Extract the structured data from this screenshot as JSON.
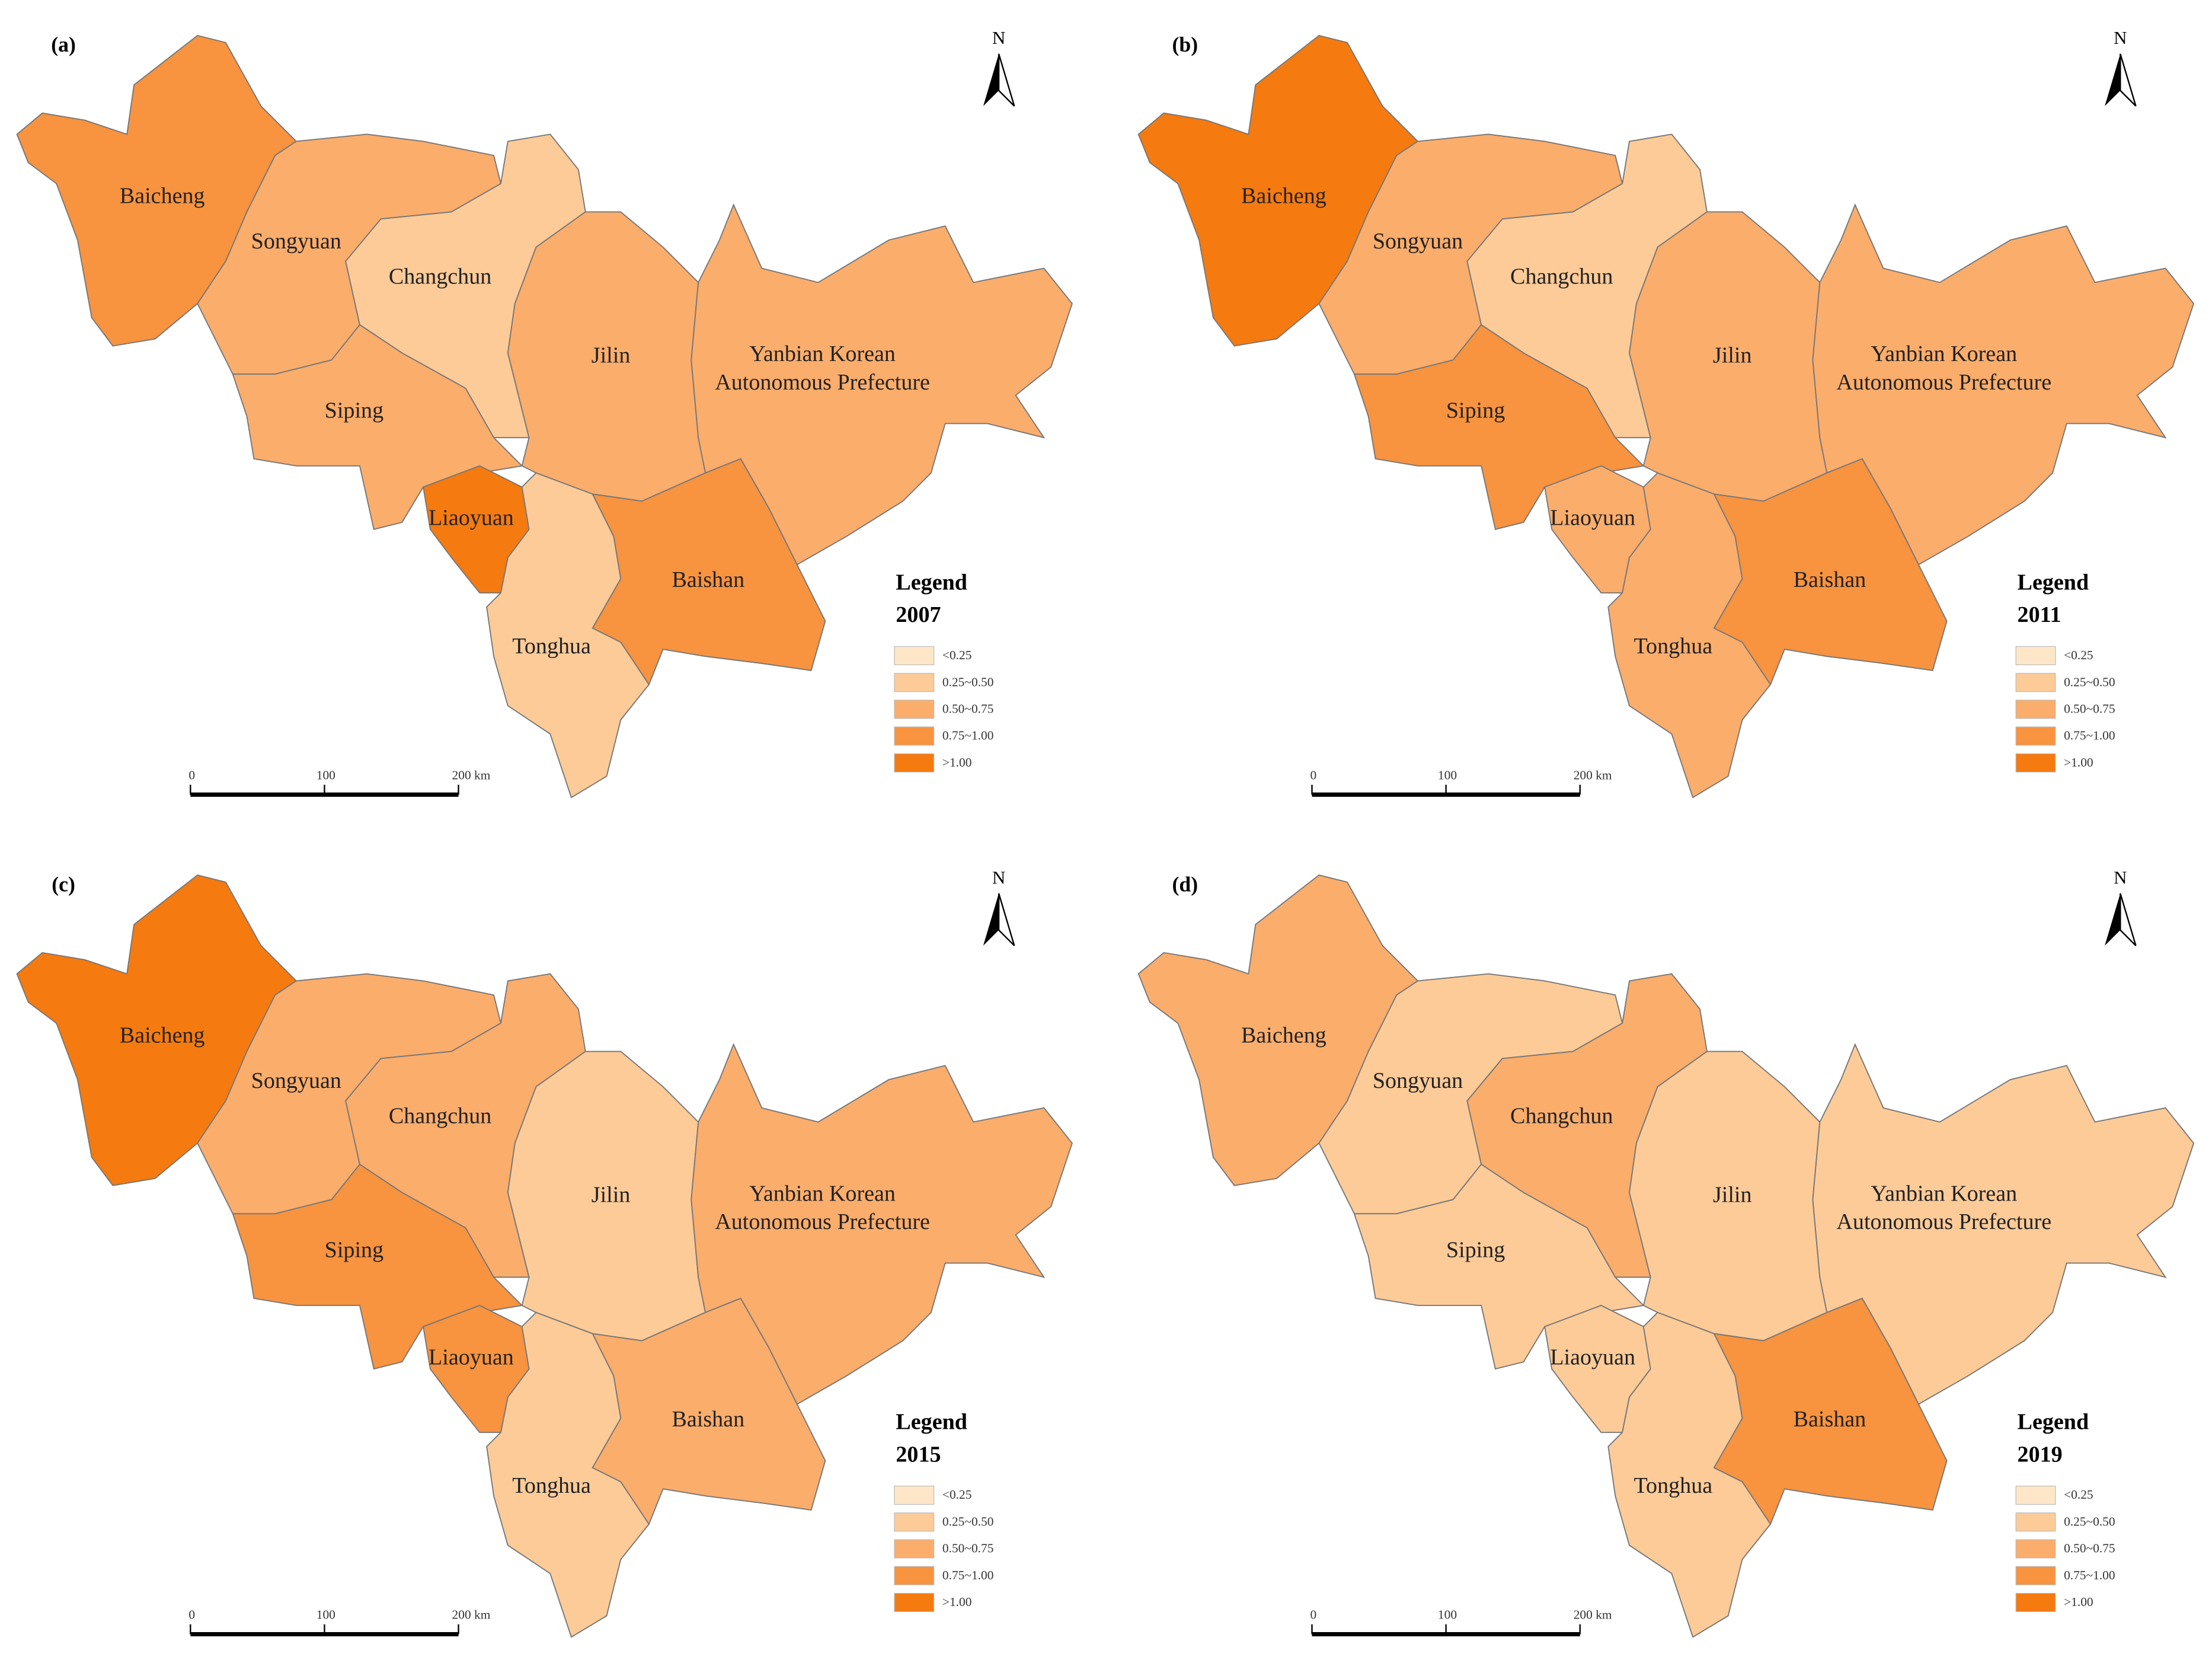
{
  "legend_items": [
    {
      "label": "<0.25",
      "color": "#fee7c8"
    },
    {
      "label": "0.25~0.50",
      "color": "#fdcb98"
    },
    {
      "label": "0.50~0.75",
      "color": "#fbad6c"
    },
    {
      "label": "0.75~1.00",
      "color": "#f8933f"
    },
    {
      "label": ">1.00",
      "color": "#f57a10"
    }
  ],
  "north": "N",
  "scale_labels": [
    "0",
    "100",
    "200 km"
  ],
  "panels": [
    {
      "label": "(a)",
      "legend_title": "Legend",
      "year": "2007",
      "regions": [
        {
          "label": [
            "Baicheng"
          ],
          "color": "#f8933f"
        },
        {
          "label": [
            "Songyuan"
          ],
          "color": "#fbad6c"
        },
        {
          "label": [
            "Changchun"
          ],
          "color": "#fdcb98"
        },
        {
          "label": [
            "Siping"
          ],
          "color": "#fbad6c"
        },
        {
          "label": [
            "Liaoyuan"
          ],
          "color": "#f57a10"
        },
        {
          "label": [
            "Jilin"
          ],
          "color": "#fbad6c"
        },
        {
          "label": [
            "Yanbian Korean",
            "Autonomous Prefecture"
          ],
          "color": "#fbad6c"
        },
        {
          "label": [
            "Baishan"
          ],
          "color": "#f8933f"
        },
        {
          "label": [
            "Tonghua"
          ],
          "color": "#fdcb98"
        }
      ]
    },
    {
      "label": "(b)",
      "legend_title": "Legend",
      "year": "2011",
      "regions": [
        {
          "label": [
            "Baicheng"
          ],
          "color": "#f57a10"
        },
        {
          "label": [
            "Songyuan"
          ],
          "color": "#fbad6c"
        },
        {
          "label": [
            "Changchun"
          ],
          "color": "#fdcb98"
        },
        {
          "label": [
            "Siping"
          ],
          "color": "#f8933f"
        },
        {
          "label": [
            "Liaoyuan"
          ],
          "color": "#fbad6c"
        },
        {
          "label": [
            "Jilin"
          ],
          "color": "#fbad6c"
        },
        {
          "label": [
            "Yanbian Korean",
            "Autonomous Prefecture"
          ],
          "color": "#fbad6c"
        },
        {
          "label": [
            "Baishan"
          ],
          "color": "#f8933f"
        },
        {
          "label": [
            "Tonghua"
          ],
          "color": "#fbad6c"
        }
      ]
    },
    {
      "label": "(c)",
      "legend_title": "Legend",
      "year": "2015",
      "regions": [
        {
          "label": [
            "Baicheng"
          ],
          "color": "#f57a10"
        },
        {
          "label": [
            "Songyuan"
          ],
          "color": "#fbad6c"
        },
        {
          "label": [
            "Changchun"
          ],
          "color": "#fbad6c"
        },
        {
          "label": [
            "Siping"
          ],
          "color": "#f8933f"
        },
        {
          "label": [
            "Liaoyuan"
          ],
          "color": "#f8933f"
        },
        {
          "label": [
            "Jilin"
          ],
          "color": "#fdcb98"
        },
        {
          "label": [
            "Yanbian Korean",
            "Autonomous Prefecture"
          ],
          "color": "#fbad6c"
        },
        {
          "label": [
            "Baishan"
          ],
          "color": "#fbad6c"
        },
        {
          "label": [
            "Tonghua"
          ],
          "color": "#fdcb98"
        }
      ]
    },
    {
      "label": "(d)",
      "legend_title": "Legend",
      "year": "2019",
      "regions": [
        {
          "label": [
            "Baicheng"
          ],
          "color": "#fbad6c"
        },
        {
          "label": [
            "Songyuan"
          ],
          "color": "#fdcb98"
        },
        {
          "label": [
            "Changchun"
          ],
          "color": "#fbad6c"
        },
        {
          "label": [
            "Siping"
          ],
          "color": "#fdcb98"
        },
        {
          "label": [
            "Liaoyuan"
          ],
          "color": "#fdcb98"
        },
        {
          "label": [
            "Jilin"
          ],
          "color": "#fdcb98"
        },
        {
          "label": [
            "Yanbian Korean",
            "Autonomous Prefecture"
          ],
          "color": "#fdcb98"
        },
        {
          "label": [
            "Baishan"
          ],
          "color": "#f8933f"
        },
        {
          "label": [
            "Tonghua"
          ],
          "color": "#fdcb98"
        }
      ]
    }
  ]
}
